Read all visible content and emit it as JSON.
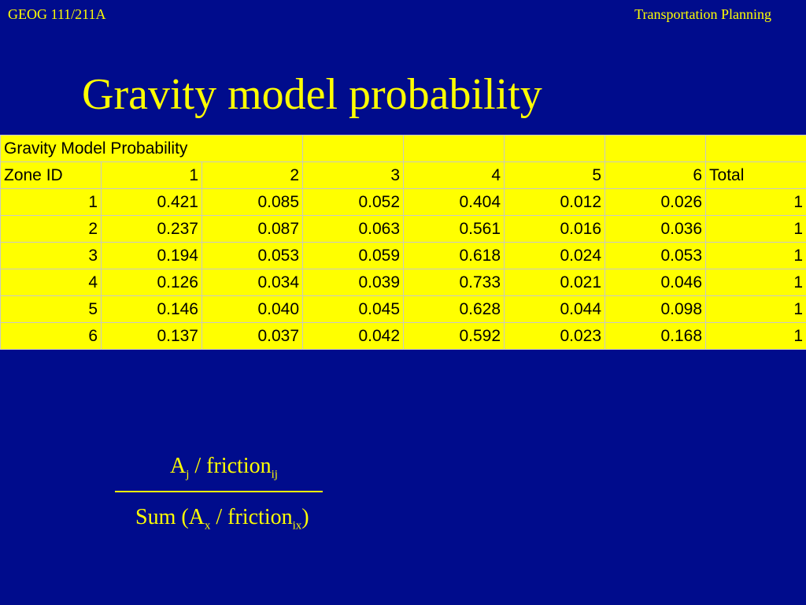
{
  "header": {
    "course": "GEOG 111/211A",
    "topic": "Transportation Planning"
  },
  "slide": {
    "title": "Gravity model probability"
  },
  "table": {
    "caption": "Gravity Model Probability",
    "header_label": "Zone ID",
    "columns": [
      "1",
      "2",
      "3",
      "4",
      "5",
      "6"
    ],
    "total_label": "Total",
    "rows": [
      {
        "zone": "1",
        "values": [
          "0.421",
          "0.085",
          "0.052",
          "0.404",
          "0.012",
          "0.026"
        ],
        "total": "1"
      },
      {
        "zone": "2",
        "values": [
          "0.237",
          "0.087",
          "0.063",
          "0.561",
          "0.016",
          "0.036"
        ],
        "total": "1"
      },
      {
        "zone": "3",
        "values": [
          "0.194",
          "0.053",
          "0.059",
          "0.618",
          "0.024",
          "0.053"
        ],
        "total": "1"
      },
      {
        "zone": "4",
        "values": [
          "0.126",
          "0.034",
          "0.039",
          "0.733",
          "0.021",
          "0.046"
        ],
        "total": "1"
      },
      {
        "zone": "5",
        "values": [
          "0.146",
          "0.040",
          "0.045",
          "0.628",
          "0.044",
          "0.098"
        ],
        "total": "1"
      },
      {
        "zone": "6",
        "values": [
          "0.137",
          "0.037",
          "0.042",
          "0.592",
          "0.023",
          "0.168"
        ],
        "total": "1"
      }
    ]
  },
  "formula": {
    "numerator": {
      "a": "A",
      "a_sub": "j",
      "rest": " / friction",
      "rest_sub": "ij"
    },
    "denominator": {
      "prefix": "Sum (A",
      "a_sub": "x",
      "rest": " / friction",
      "rest_sub": "ix",
      "suffix": ")"
    }
  },
  "colors": {
    "background": "#000c8c",
    "text": "#ffff00",
    "table_fill": "#ffff00",
    "table_text": "#000000",
    "table_border": "#c8c8c8"
  }
}
